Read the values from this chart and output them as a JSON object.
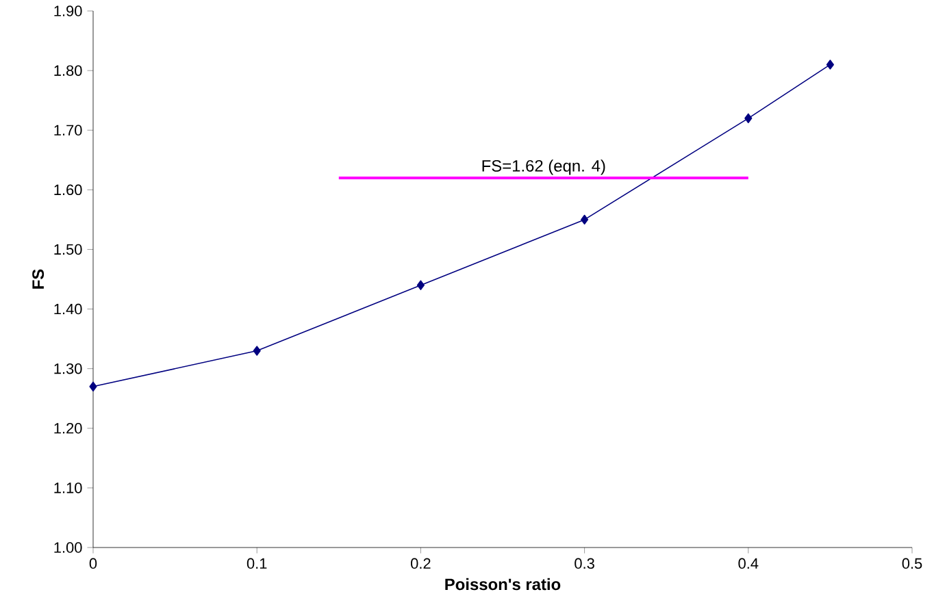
{
  "chart_data": {
    "type": "line",
    "xlabel": "Poisson's ratio",
    "ylabel": "FS",
    "x": [
      0,
      0.1,
      0.2,
      0.3,
      0.4,
      0.45
    ],
    "series": [
      {
        "color": "#000080",
        "values": [
          1.27,
          1.33,
          1.44,
          1.55,
          1.72,
          1.81
        ],
        "marker": "diamond"
      },
      {
        "color": "#ff00ff",
        "x": [
          0.15,
          0.4
        ],
        "values": [
          1.62,
          1.62
        ],
        "marker": "none"
      }
    ],
    "annotations": [
      {
        "text": "FS=1.62 (eqn. 4)",
        "x": 0.275,
        "y": 1.62
      }
    ],
    "xlim": [
      0,
      0.5
    ],
    "xticks": [
      0,
      0.1,
      0.2,
      0.3,
      0.4,
      0.5
    ],
    "ylim": [
      1.0,
      1.9
    ],
    "yticks": [
      {
        "value": 1.0,
        "label": "1.00"
      },
      {
        "value": 1.1,
        "label": "1.10"
      },
      {
        "value": 1.2,
        "label": "1.20"
      },
      {
        "value": 1.3,
        "label": "1.30"
      },
      {
        "value": 1.4,
        "label": "1.40"
      },
      {
        "value": 1.5,
        "label": "1.50"
      },
      {
        "value": 1.6,
        "label": "1.60"
      },
      {
        "value": 1.7,
        "label": "1.70"
      },
      {
        "value": 1.8,
        "label": "1.80"
      },
      {
        "value": 1.9,
        "label": "1.90"
      }
    ],
    "grid": false,
    "line_style": "solid"
  }
}
